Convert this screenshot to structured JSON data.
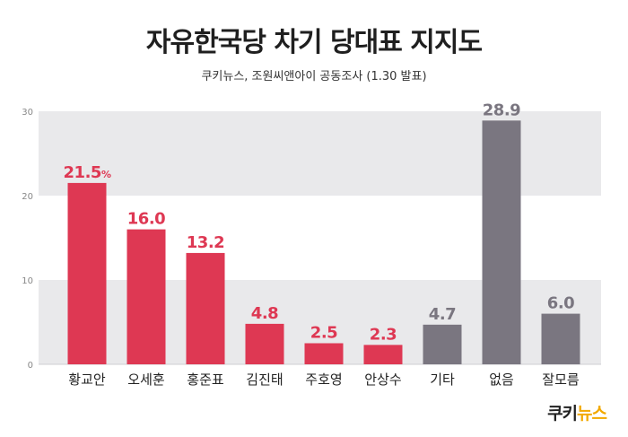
{
  "title": "자유한국당 차기 당대표 지지도",
  "subtitle": "쿠키뉴스, 조원씨앤아이 공동조사 (1.30 발표)",
  "logo": {
    "part1": "쿠키",
    "part2": "뉴스"
  },
  "colors": {
    "party": "#de3853",
    "other": "#7a7680",
    "band": "#e9e9eb",
    "axis": "#888888"
  },
  "chart_data": {
    "type": "bar",
    "categories": [
      "황교안",
      "오세훈",
      "홍준표",
      "김진태",
      "주호영",
      "안상수",
      "기타",
      "없음",
      "잘모름"
    ],
    "values": [
      21.5,
      16.0,
      13.2,
      4.8,
      2.5,
      2.3,
      4.7,
      28.9,
      6.0
    ],
    "value_labels": [
      "21.5",
      "16.0",
      "13.2",
      "4.8",
      "2.5",
      "2.3",
      "4.7",
      "28.9",
      "6.0"
    ],
    "unit_label": "%",
    "groups": [
      "party",
      "party",
      "party",
      "party",
      "party",
      "party",
      "other",
      "other",
      "other"
    ],
    "ylim": [
      0,
      30
    ],
    "yticks": [
      "0",
      "10",
      "20",
      "30"
    ],
    "grid": "alternating horizontal bands",
    "legend": "none"
  }
}
